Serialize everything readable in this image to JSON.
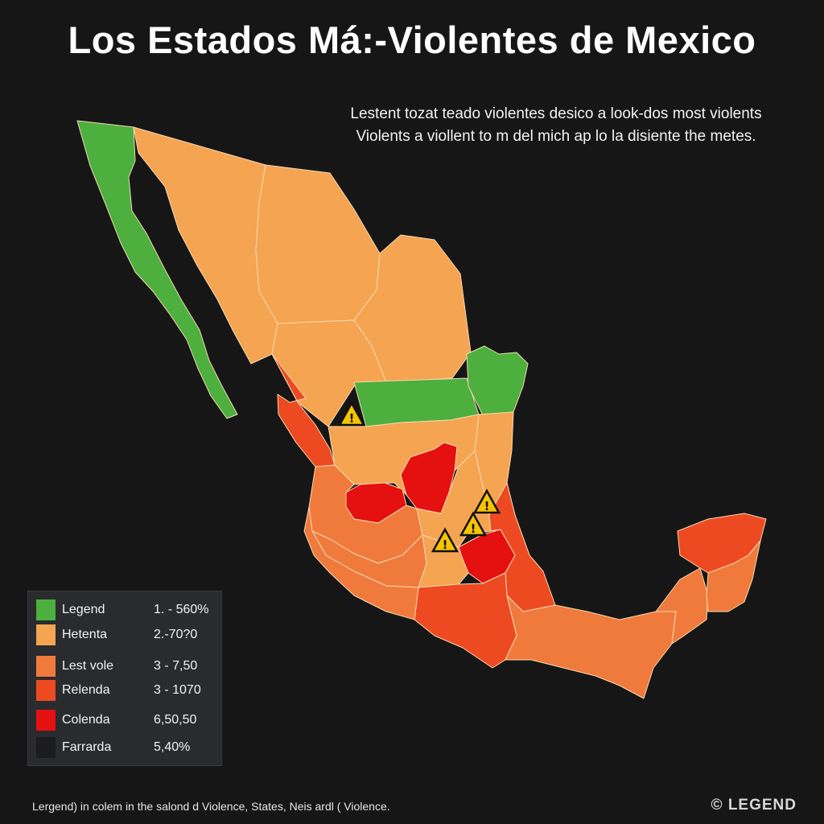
{
  "header": {
    "title": "Los Estados Má:-Violentes de Mexico",
    "subtitle_line1": "Lestent tozat teado violentes desico a look-dos most violents",
    "subtitle_line2": "Violents a viollent to m del mich ap lo la disiente the metes."
  },
  "colors": {
    "green": "#4caf3e",
    "light_orange": "#f5a452",
    "orange": "#f07a3c",
    "red_orange": "#ee4a22",
    "red": "#e51010",
    "dark": "#1c1c1f",
    "border": "#f7d9b0"
  },
  "map": {
    "warning_icon": "warning-triangle-icon",
    "warning_count": 4
  },
  "legend": {
    "items": [
      {
        "label": "Legend",
        "range": "1. - 560%",
        "color": "#4caf3e"
      },
      {
        "label": "Hetenta",
        "range": "2.-70?0",
        "color": "#f5a452"
      },
      {
        "label": "Lest vole",
        "range": "3 - 7,50",
        "color": "#f07a3c"
      },
      {
        "label": "Relenda",
        "range": "3 - 1070",
        "color": "#ee4a22"
      },
      {
        "label": "Colenda",
        "range": "6,50,50",
        "color": "#e51010"
      },
      {
        "label": "Farrarda",
        "range": "5,40%",
        "color": "#1c1c1f"
      }
    ]
  },
  "footer": {
    "note": "Lergend) in colem in the salond d Violence, States, Neis ardl ( Violence.",
    "brand": "© LEGEND"
  }
}
